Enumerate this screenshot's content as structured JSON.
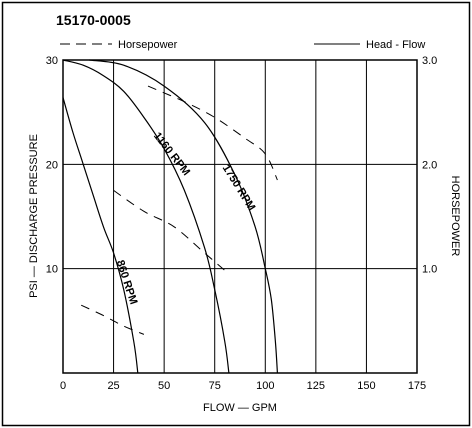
{
  "chart_data": {
    "type": "line",
    "title": "15170-0005",
    "legend": [
      {
        "label": "Horsepower",
        "style": "dashed"
      },
      {
        "label": "Head - Flow",
        "style": "solid"
      }
    ],
    "xlabel": "FLOW — GPM",
    "ylabel": "PSI — DISCHARGE PRESSURE",
    "y2label": "HORSEPOWER",
    "xlim": [
      0,
      175
    ],
    "ylim": [
      0,
      30
    ],
    "y2lim": [
      0,
      3
    ],
    "x_ticks": [
      "0",
      "25",
      "50",
      "75",
      "100",
      "125",
      "150",
      "175"
    ],
    "y_ticks": [
      "10",
      "20",
      "30"
    ],
    "y2_ticks": [
      "1.0",
      "2.0",
      "3.0"
    ],
    "grid": true,
    "series": [
      {
        "name": "860 RPM",
        "kind": "head-flow",
        "points": [
          [
            0,
            26.4
          ],
          [
            5,
            23
          ],
          [
            10,
            20
          ],
          [
            15,
            17
          ],
          [
            20,
            14
          ],
          [
            25,
            11.5
          ],
          [
            30,
            8
          ],
          [
            35,
            3
          ],
          [
            37,
            0
          ]
        ]
      },
      {
        "name": "1160 RPM",
        "kind": "head-flow",
        "points": [
          [
            0,
            30
          ],
          [
            10,
            29.5
          ],
          [
            20,
            28.5
          ],
          [
            30,
            27
          ],
          [
            40,
            24.5
          ],
          [
            50,
            21.5
          ],
          [
            60,
            17.5
          ],
          [
            70,
            12
          ],
          [
            75,
            8
          ],
          [
            80,
            3
          ],
          [
            82,
            0
          ]
        ]
      },
      {
        "name": "1750 RPM",
        "kind": "head-flow",
        "points": [
          [
            13,
            30
          ],
          [
            30,
            29.5
          ],
          [
            50,
            27.5
          ],
          [
            70,
            24
          ],
          [
            85,
            19
          ],
          [
            95,
            14
          ],
          [
            100,
            10
          ],
          [
            103,
            7
          ],
          [
            105,
            3
          ],
          [
            106,
            0
          ]
        ]
      },
      {
        "name": "860 RPM",
        "kind": "horsepower",
        "points": [
          [
            9,
            0.65
          ],
          [
            20,
            0.55
          ],
          [
            30,
            0.45
          ],
          [
            40,
            0.37
          ]
        ]
      },
      {
        "name": "1160 RPM",
        "kind": "horsepower",
        "points": [
          [
            25,
            1.75
          ],
          [
            40,
            1.55
          ],
          [
            55,
            1.4
          ],
          [
            70,
            1.15
          ],
          [
            82,
            0.95
          ]
        ]
      },
      {
        "name": "1750 RPM",
        "kind": "horsepower",
        "points": [
          [
            42,
            2.75
          ],
          [
            60,
            2.6
          ],
          [
            75,
            2.45
          ],
          [
            90,
            2.25
          ],
          [
            100,
            2.1
          ],
          [
            106,
            1.85
          ]
        ]
      }
    ]
  }
}
